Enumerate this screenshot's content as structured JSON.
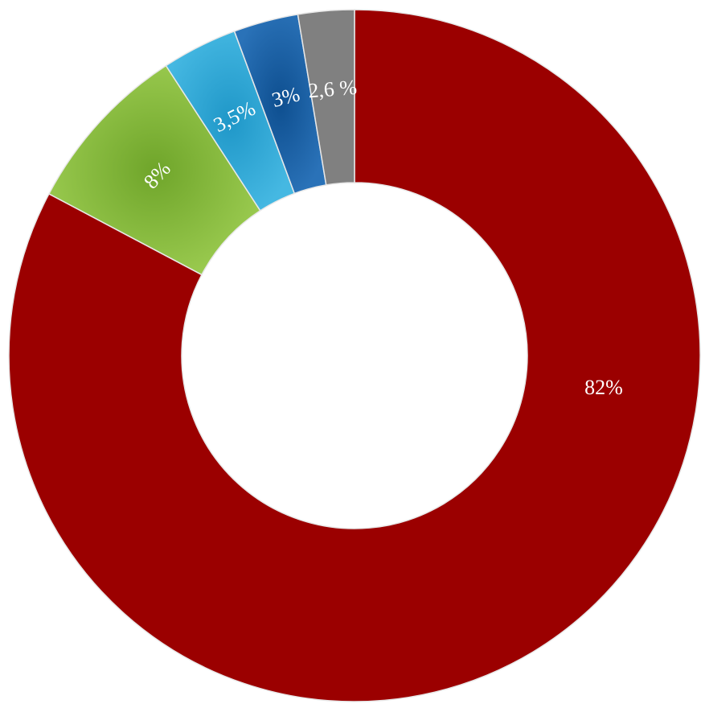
{
  "chart_data": {
    "type": "pie",
    "variant": "donut",
    "title": "",
    "legend": "none",
    "slices": [
      {
        "value": 82,
        "label": "82%",
        "color": "#9b0000"
      },
      {
        "value": 8,
        "label": "8%",
        "color": "#84b93a"
      },
      {
        "value": 3.5,
        "label": "3,5%",
        "color": "#2ea8d6"
      },
      {
        "value": 3,
        "label": "3%",
        "color": "#1a5fa4"
      },
      {
        "value": 2.6,
        "label": "2,6 %",
        "color": "#808080"
      }
    ]
  }
}
